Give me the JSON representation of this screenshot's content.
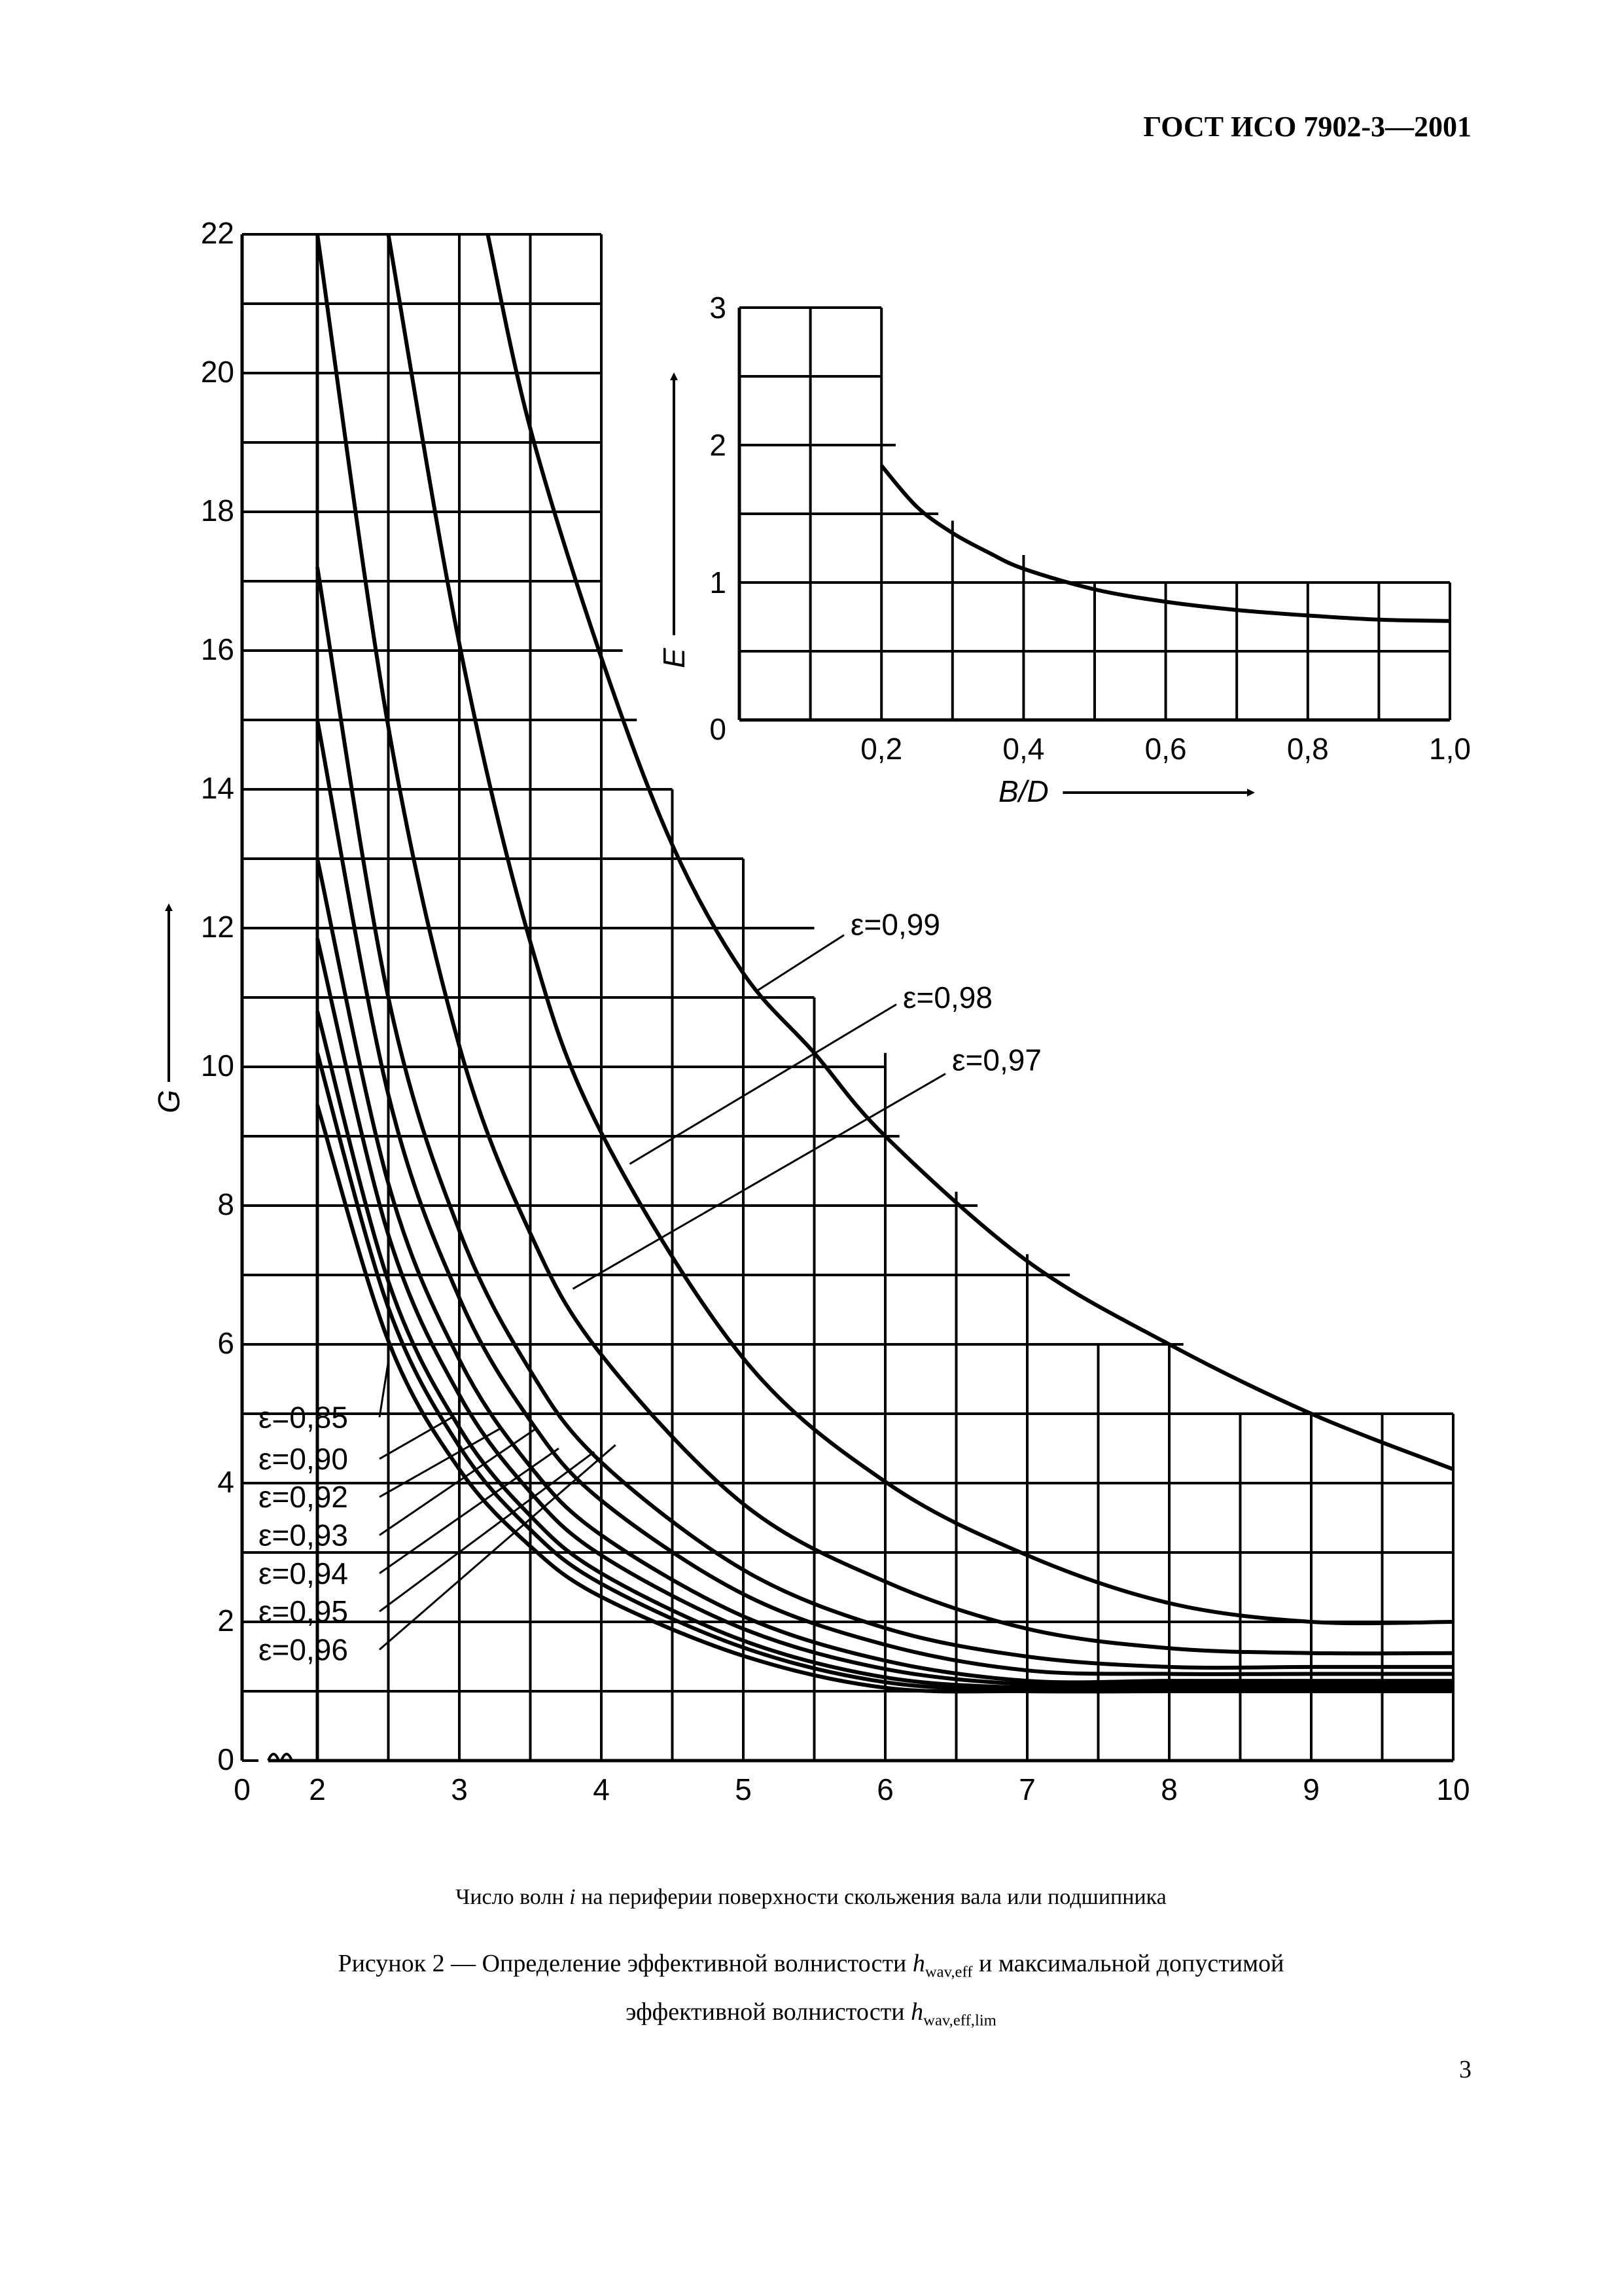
{
  "header": {
    "doc_id": "ГОСТ ИСО 7902-3—2001"
  },
  "page_number": "3",
  "caption": {
    "x_description_pre": "Число волн ",
    "x_description_var": "i",
    "x_description_post": " на периферии поверхности скольжения вала или подшипника",
    "figure_line1_pre": "Рисунок 2 — Определение эффективной волнистости ",
    "figure_line1_var": "h",
    "figure_line1_sub": "wav,eff",
    "figure_line1_post": " и максимальной допустимой",
    "figure_line2_pre": "эффективной волнистости ",
    "figure_line2_var": "h",
    "figure_line2_sub": "wav,eff,lim"
  },
  "chart_data": [
    {
      "type": "line",
      "xlabel": "",
      "ylabel": "G",
      "xlim": [
        2,
        10
      ],
      "ylim": [
        0,
        22
      ],
      "x_ticks": [
        0,
        2,
        3,
        4,
        5,
        6,
        7,
        8,
        9,
        10
      ],
      "y_ticks": [
        0,
        2,
        4,
        6,
        8,
        10,
        12,
        14,
        16,
        18,
        20,
        22
      ],
      "axis_break": true,
      "grid": true,
      "series": [
        {
          "name": "ε=0,85",
          "x": [
            2,
            2.5,
            3,
            3.5,
            4,
            5,
            6,
            7,
            8,
            9,
            10
          ],
          "y": [
            9.45,
            6.05,
            4.2,
            3.09,
            2.36,
            1.51,
            1.05,
            1.0,
            1.0,
            1.0,
            1.0
          ]
        },
        {
          "name": "ε=0,90",
          "x": [
            2,
            2.5,
            3,
            3.5,
            4,
            5,
            6,
            7,
            8,
            9,
            10
          ],
          "y": [
            10.2,
            6.53,
            4.53,
            3.33,
            2.55,
            1.63,
            1.13,
            1.02,
            1.02,
            1.02,
            1.02
          ]
        },
        {
          "name": "ε=0,92",
          "x": [
            2,
            2.5,
            3,
            3.5,
            4,
            5,
            6,
            7,
            8,
            9,
            10
          ],
          "y": [
            10.8,
            6.91,
            4.8,
            3.53,
            2.7,
            1.73,
            1.2,
            1.05,
            1.05,
            1.05,
            1.05
          ]
        },
        {
          "name": "ε=0,93",
          "x": [
            2,
            2.5,
            3,
            3.5,
            4,
            5,
            6,
            7,
            8,
            9,
            10
          ],
          "y": [
            11.85,
            7.58,
            5.27,
            3.87,
            2.96,
            1.9,
            1.32,
            1.1,
            1.1,
            1.1,
            1.1
          ]
        },
        {
          "name": "ε=0,94",
          "x": [
            2,
            2.5,
            3,
            3.5,
            4,
            5,
            6,
            7,
            8,
            9,
            10
          ],
          "y": [
            13.0,
            8.32,
            5.78,
            4.24,
            3.25,
            2.08,
            1.44,
            1.15,
            1.15,
            1.15,
            1.15
          ]
        },
        {
          "name": "ε=0,95",
          "x": [
            2,
            2.5,
            3,
            3.5,
            4,
            5,
            6,
            7,
            8,
            9,
            10
          ],
          "y": [
            15.0,
            9.6,
            6.67,
            4.9,
            3.75,
            2.4,
            1.67,
            1.3,
            1.25,
            1.25,
            1.25
          ]
        },
        {
          "name": "ε=0,96",
          "x": [
            2,
            2.5,
            3,
            3.5,
            4,
            5,
            6,
            7,
            8,
            9,
            10
          ],
          "y": [
            17.2,
            11.0,
            7.64,
            5.62,
            4.3,
            2.75,
            1.91,
            1.5,
            1.35,
            1.35,
            1.35
          ]
        },
        {
          "name": "ε=0,97",
          "x": [
            2,
            2.5,
            3,
            3.5,
            4,
            5,
            6,
            7,
            8,
            9,
            10
          ],
          "y": [
            22,
            14.9,
            10.3,
            7.6,
            5.85,
            3.7,
            2.58,
            1.9,
            1.62,
            1.55,
            1.55
          ]
        },
        {
          "name": "ε=0,98",
          "x": [
            2.5,
            3,
            3.5,
            4,
            5,
            6,
            7,
            8,
            9,
            10
          ],
          "y": [
            22,
            16.1,
            11.8,
            9.05,
            5.8,
            4.02,
            2.96,
            2.27,
            2.0,
            2.0
          ]
        },
        {
          "name": "ε=0,99",
          "x": [
            3.2,
            3.5,
            4,
            4.5,
            5,
            5.5,
            6,
            7,
            8,
            9,
            10
          ],
          "y": [
            22,
            19.2,
            15.9,
            13.2,
            11.35,
            10.2,
            9.0,
            7.2,
            6.0,
            5.0,
            4.2
          ]
        }
      ],
      "series_labels": [
        "ε=0,85",
        "ε=0,90",
        "ε=0,92",
        "ε=0,93",
        "ε=0,94",
        "ε=0,95",
        "ε=0,96",
        "ε=0,97",
        "ε=0,98",
        "ε=0,99"
      ],
      "x_tick_labels": [
        "0",
        "2",
        "3",
        "4",
        "5",
        "6",
        "7",
        "8",
        "9",
        "10"
      ],
      "y_tick_labels": [
        "0",
        "2",
        "4",
        "6",
        "8",
        "10",
        "12",
        "14",
        "16",
        "18",
        "20",
        "22"
      ]
    },
    {
      "type": "line",
      "xlabel": "B/D",
      "ylabel": "E",
      "xlim": [
        0,
        1.0
      ],
      "ylim": [
        0,
        3
      ],
      "x_tick_labels": [
        "0,2",
        "0,4",
        "0,6",
        "0,8",
        "1,0"
      ],
      "y_tick_labels": [
        "0",
        "1",
        "2",
        "3"
      ],
      "grid": true,
      "series": [
        {
          "name": "",
          "x": [
            0.2,
            0.25,
            0.3,
            0.35,
            0.4,
            0.5,
            0.6,
            0.7,
            0.8,
            0.9,
            1.0
          ],
          "y": [
            1.85,
            1.55,
            1.36,
            1.22,
            1.1,
            0.95,
            0.86,
            0.8,
            0.76,
            0.73,
            0.72
          ]
        }
      ]
    }
  ]
}
